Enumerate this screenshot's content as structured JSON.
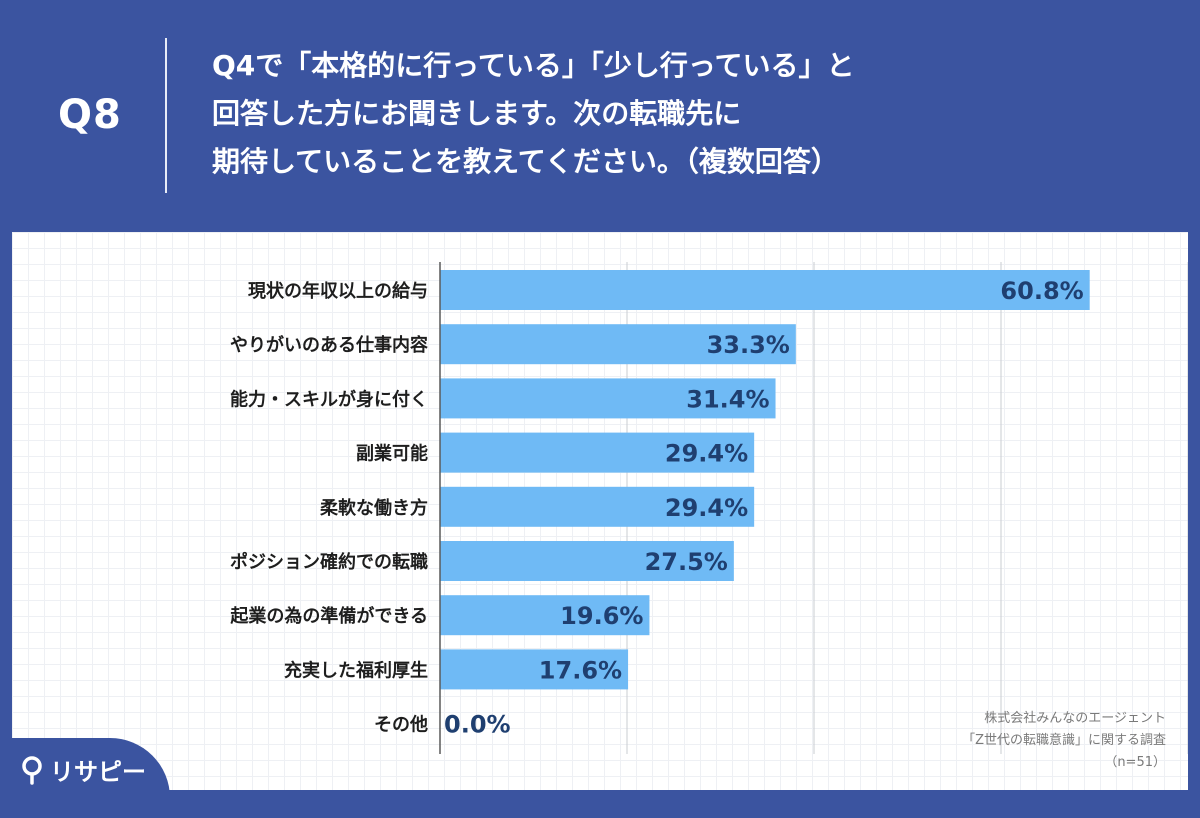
{
  "question": {
    "number": "Q8",
    "lines": [
      "Q4で「本格的に行っている」「少し行っている」と",
      "回答した方にお聞きします。次の転職先に",
      "期待していることを教えてください。（複数回答）"
    ]
  },
  "source": {
    "lines": [
      "株式会社みんなのエージェント",
      "「Z世代の転職意識」に関する調査",
      "（n=51）"
    ]
  },
  "logo": {
    "text": "リサピー",
    "icon": "search-icon"
  },
  "colors": {
    "background": "#3b54a0",
    "bar": "#6fbaf5",
    "value_label": "#1f3f70"
  },
  "chart_data": {
    "type": "bar",
    "orientation": "horizontal",
    "categories": [
      "現状の年収以上の給与",
      "やりがいのある仕事内容",
      "能力・スキルが身に付く",
      "副業可能",
      "柔軟な働き方",
      "ポジション確約での転職",
      "起業の為の準備ができる",
      "充実した福利厚生",
      "その他"
    ],
    "values": [
      60.8,
      33.3,
      31.4,
      29.4,
      29.4,
      27.5,
      19.6,
      17.6,
      0.0
    ],
    "value_labels": [
      "60.8%",
      "33.3%",
      "31.4%",
      "29.4%",
      "29.4%",
      "27.5%",
      "19.6%",
      "17.6%",
      "0.0%"
    ],
    "xlim": [
      0,
      70
    ],
    "gridlines_at": [
      0,
      17.5,
      35,
      52.5,
      70
    ],
    "grid": true
  }
}
